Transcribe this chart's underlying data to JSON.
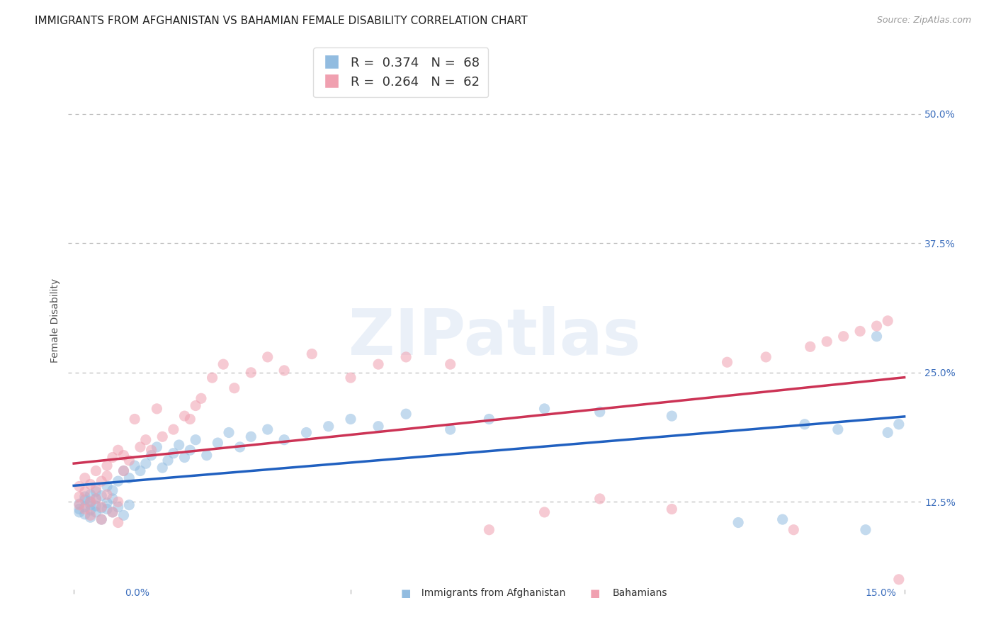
{
  "title": "IMMIGRANTS FROM AFGHANISTAN VS BAHAMIAN FEMALE DISABILITY CORRELATION CHART",
  "source": "Source: ZipAtlas.com",
  "ylabel": "Female Disability",
  "ytick_labels": [
    "12.5%",
    "25.0%",
    "37.5%",
    "50.0%"
  ],
  "ytick_values": [
    0.125,
    0.25,
    0.375,
    0.5
  ],
  "xlim": [
    -0.001,
    0.153
  ],
  "ylim": [
    0.04,
    0.56
  ],
  "blue_color": "#92bce0",
  "pink_color": "#f0a0b0",
  "blue_line_color": "#2060c0",
  "pink_line_color": "#cc3355",
  "blue_R": 0.374,
  "blue_N": 68,
  "pink_R": 0.264,
  "pink_N": 62,
  "watermark_text": "ZIPatlas",
  "background_color": "#ffffff",
  "grid_color": "#bbbbbb",
  "title_fontsize": 11,
  "axis_label_fontsize": 10,
  "tick_fontsize": 10,
  "legend_fontsize": 13,
  "scatter_size": 120,
  "scatter_alpha": 0.55,
  "blue_x": [
    0.001,
    0.001,
    0.001,
    0.002,
    0.002,
    0.002,
    0.002,
    0.003,
    0.003,
    0.003,
    0.003,
    0.003,
    0.004,
    0.004,
    0.004,
    0.004,
    0.005,
    0.005,
    0.005,
    0.006,
    0.006,
    0.006,
    0.007,
    0.007,
    0.007,
    0.008,
    0.008,
    0.009,
    0.009,
    0.01,
    0.01,
    0.011,
    0.012,
    0.013,
    0.014,
    0.015,
    0.016,
    0.017,
    0.018,
    0.019,
    0.02,
    0.021,
    0.022,
    0.024,
    0.026,
    0.028,
    0.03,
    0.032,
    0.035,
    0.038,
    0.042,
    0.046,
    0.05,
    0.055,
    0.06,
    0.068,
    0.075,
    0.085,
    0.095,
    0.108,
    0.12,
    0.128,
    0.132,
    0.138,
    0.143,
    0.145,
    0.147,
    0.149
  ],
  "blue_y": [
    0.118,
    0.123,
    0.115,
    0.12,
    0.127,
    0.113,
    0.13,
    0.117,
    0.125,
    0.122,
    0.132,
    0.11,
    0.121,
    0.128,
    0.115,
    0.135,
    0.119,
    0.131,
    0.108,
    0.124,
    0.118,
    0.14,
    0.115,
    0.128,
    0.136,
    0.12,
    0.145,
    0.155,
    0.112,
    0.148,
    0.122,
    0.16,
    0.155,
    0.162,
    0.17,
    0.178,
    0.158,
    0.165,
    0.172,
    0.18,
    0.168,
    0.175,
    0.185,
    0.17,
    0.182,
    0.192,
    0.178,
    0.188,
    0.195,
    0.185,
    0.192,
    0.198,
    0.205,
    0.198,
    0.21,
    0.195,
    0.205,
    0.215,
    0.212,
    0.208,
    0.105,
    0.108,
    0.2,
    0.195,
    0.098,
    0.285,
    0.192,
    0.2
  ],
  "pink_x": [
    0.001,
    0.001,
    0.001,
    0.002,
    0.002,
    0.002,
    0.003,
    0.003,
    0.003,
    0.004,
    0.004,
    0.004,
    0.005,
    0.005,
    0.005,
    0.006,
    0.006,
    0.006,
    0.007,
    0.007,
    0.008,
    0.008,
    0.008,
    0.009,
    0.009,
    0.01,
    0.011,
    0.012,
    0.013,
    0.014,
    0.015,
    0.016,
    0.018,
    0.02,
    0.021,
    0.022,
    0.023,
    0.025,
    0.027,
    0.029,
    0.032,
    0.035,
    0.038,
    0.043,
    0.05,
    0.055,
    0.06,
    0.068,
    0.075,
    0.085,
    0.095,
    0.108,
    0.118,
    0.125,
    0.13,
    0.133,
    0.136,
    0.139,
    0.142,
    0.145,
    0.147,
    0.149
  ],
  "pink_y": [
    0.13,
    0.122,
    0.14,
    0.118,
    0.135,
    0.148,
    0.125,
    0.142,
    0.112,
    0.138,
    0.128,
    0.155,
    0.12,
    0.145,
    0.108,
    0.16,
    0.132,
    0.15,
    0.115,
    0.168,
    0.125,
    0.175,
    0.105,
    0.155,
    0.17,
    0.165,
    0.205,
    0.178,
    0.185,
    0.175,
    0.215,
    0.188,
    0.195,
    0.208,
    0.205,
    0.218,
    0.225,
    0.245,
    0.258,
    0.235,
    0.25,
    0.265,
    0.252,
    0.268,
    0.245,
    0.258,
    0.265,
    0.258,
    0.098,
    0.115,
    0.128,
    0.118,
    0.26,
    0.265,
    0.098,
    0.275,
    0.28,
    0.285,
    0.29,
    0.295,
    0.3,
    0.05
  ]
}
